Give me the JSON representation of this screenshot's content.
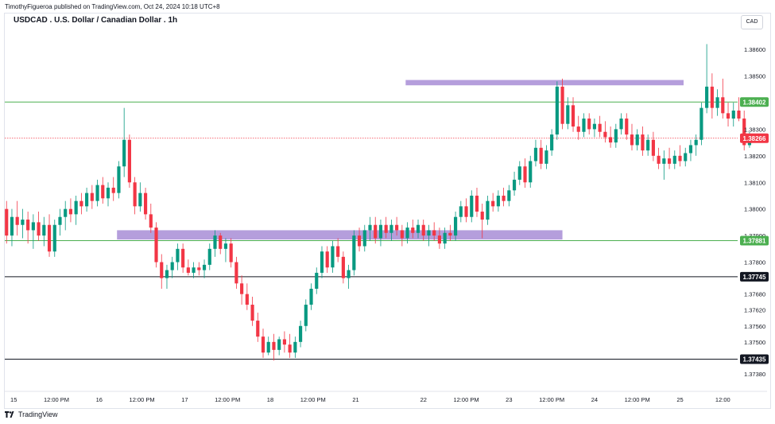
{
  "caption": "TimothyFigueroa published on TradingView.com, Oct 24, 2024 10:18 UTC+8",
  "brand": "TradingView",
  "chart_data": {
    "type": "candlestick",
    "title": "USDCAD . U.S. Dollar / Canadian Dollar . 1h",
    "currency": "CAD",
    "ylim": [
      1.3732,
      1.3872
    ],
    "y_ticks": [
      "1.38700",
      "1.38600",
      "1.38500",
      "1.38300",
      "1.38200",
      "1.38100",
      "1.38000",
      "1.37900",
      "1.37800",
      "1.37680",
      "1.37620",
      "1.37560",
      "1.37500",
      "1.37380"
    ],
    "x_ticks": [
      {
        "label": "15",
        "bar": 2
      },
      {
        "label": "12:00 PM",
        "bar": 14
      },
      {
        "label": "16",
        "bar": 26
      },
      {
        "label": "12:00 PM",
        "bar": 38
      },
      {
        "label": "17",
        "bar": 50
      },
      {
        "label": "12:00 PM",
        "bar": 62
      },
      {
        "label": "18",
        "bar": 74
      },
      {
        "label": "12:00 PM",
        "bar": 86
      },
      {
        "label": "21",
        "bar": 98
      },
      {
        "label": "22",
        "bar": 117
      },
      {
        "label": "12:00 PM",
        "bar": 129
      },
      {
        "label": "23",
        "bar": 141
      },
      {
        "label": "12:00 PM",
        "bar": 153
      },
      {
        "label": "24",
        "bar": 165
      },
      {
        "label": "12:00 PM",
        "bar": 177
      },
      {
        "label": "25",
        "bar": 189
      },
      {
        "label": "12:00",
        "bar": 201
      }
    ],
    "levels": [
      {
        "value": 1.38402,
        "label": "1.38402",
        "color": "#4caf50",
        "style": "solid"
      },
      {
        "value": 1.37881,
        "label": "1.37881",
        "color": "#4caf50",
        "style": "solid"
      },
      {
        "value": 1.37745,
        "label": "1.37745",
        "color": "#131722",
        "style": "solid"
      },
      {
        "value": 1.37435,
        "label": "1.37435",
        "color": "#131722",
        "style": "solid"
      },
      {
        "value": 1.38266,
        "label": "1.38266",
        "color": "#f23645",
        "style": "dotted"
      }
    ],
    "zones": [
      {
        "bar_start": 112,
        "bar_end": 190,
        "y_top": 1.38485,
        "y_bottom": 1.38465,
        "color": "#9575cd"
      },
      {
        "bar_start": 31,
        "bar_end": 156,
        "y_top": 1.3792,
        "y_bottom": 1.37885,
        "color": "#9575cd"
      }
    ],
    "colors": {
      "up": "#089981",
      "down": "#f23645"
    },
    "bars": 205,
    "candles": [
      [
        1.38,
        1.3803,
        1.3787,
        1.379
      ],
      [
        1.379,
        1.38,
        1.3786,
        1.3797
      ],
      [
        1.3797,
        1.3803,
        1.379,
        1.3794
      ],
      [
        1.3794,
        1.38,
        1.3789,
        1.3796
      ],
      [
        1.3796,
        1.3799,
        1.3787,
        1.3792
      ],
      [
        1.3792,
        1.3798,
        1.3785,
        1.3795
      ],
      [
        1.3795,
        1.3799,
        1.3788,
        1.379
      ],
      [
        1.379,
        1.3797,
        1.3786,
        1.3794
      ],
      [
        1.3794,
        1.3798,
        1.3782,
        1.3784
      ],
      [
        1.3784,
        1.3796,
        1.3782,
        1.3794
      ],
      [
        1.3794,
        1.38,
        1.379,
        1.3797
      ],
      [
        1.3797,
        1.3803,
        1.3792,
        1.38
      ],
      [
        1.38,
        1.3804,
        1.3795,
        1.3798
      ],
      [
        1.3798,
        1.3805,
        1.3794,
        1.3803
      ],
      [
        1.3803,
        1.3806,
        1.3798,
        1.3801
      ],
      [
        1.3801,
        1.3808,
        1.3799,
        1.3806
      ],
      [
        1.3806,
        1.3809,
        1.38,
        1.3803
      ],
      [
        1.3803,
        1.3811,
        1.3801,
        1.3809
      ],
      [
        1.3809,
        1.3812,
        1.3802,
        1.3804
      ],
      [
        1.3804,
        1.381,
        1.3801,
        1.3808
      ],
      [
        1.3808,
        1.3812,
        1.3803,
        1.3806
      ],
      [
        1.3806,
        1.3818,
        1.3804,
        1.3816
      ],
      [
        1.3816,
        1.3838,
        1.3812,
        1.3826
      ],
      [
        1.3826,
        1.3828,
        1.3808,
        1.381
      ],
      [
        1.381,
        1.3812,
        1.3798,
        1.3801
      ],
      [
        1.3801,
        1.381,
        1.3799,
        1.3806
      ],
      [
        1.3806,
        1.3808,
        1.3796,
        1.3798
      ],
      [
        1.3798,
        1.3802,
        1.3791,
        1.3793
      ],
      [
        1.3793,
        1.3795,
        1.3778,
        1.378
      ],
      [
        1.378,
        1.3783,
        1.377,
        1.3774
      ],
      [
        1.3774,
        1.3779,
        1.377,
        1.3777
      ],
      [
        1.3777,
        1.3782,
        1.3774,
        1.378
      ],
      [
        1.378,
        1.3787,
        1.3777,
        1.3785
      ],
      [
        1.3785,
        1.3787,
        1.3776,
        1.3778
      ],
      [
        1.3778,
        1.3781,
        1.3775,
        1.3776
      ],
      [
        1.3776,
        1.378,
        1.3774,
        1.3778
      ],
      [
        1.3778,
        1.378,
        1.3775,
        1.3777
      ],
      [
        1.3777,
        1.3781,
        1.3774,
        1.3779
      ],
      [
        1.3779,
        1.3787,
        1.3777,
        1.3785
      ],
      [
        1.3785,
        1.3792,
        1.3782,
        1.379
      ],
      [
        1.379,
        1.3791,
        1.3783,
        1.3785
      ],
      [
        1.3785,
        1.3789,
        1.378,
        1.3787
      ],
      [
        1.3787,
        1.3789,
        1.3778,
        1.378
      ],
      [
        1.378,
        1.3782,
        1.377,
        1.3772
      ],
      [
        1.3772,
        1.3775,
        1.3764,
        1.3768
      ],
      [
        1.3768,
        1.3772,
        1.3762,
        1.3764
      ],
      [
        1.3764,
        1.3767,
        1.3756,
        1.3758
      ],
      [
        1.3758,
        1.3761,
        1.375,
        1.3752
      ],
      [
        1.3752,
        1.3755,
        1.3744,
        1.3746
      ],
      [
        1.3746,
        1.3752,
        1.3745,
        1.375
      ],
      [
        1.375,
        1.3753,
        1.3743,
        1.3747
      ],
      [
        1.3747,
        1.3752,
        1.3745,
        1.3751
      ],
      [
        1.3751,
        1.3754,
        1.3746,
        1.3749
      ],
      [
        1.3749,
        1.3753,
        1.3744,
        1.3746
      ],
      [
        1.3746,
        1.3752,
        1.3744,
        1.375
      ],
      [
        1.375,
        1.3758,
        1.3748,
        1.3756
      ],
      [
        1.3756,
        1.3766,
        1.3754,
        1.3764
      ],
      [
        1.3764,
        1.3772,
        1.3762,
        1.377
      ],
      [
        1.377,
        1.3778,
        1.3768,
        1.3776
      ],
      [
        1.3776,
        1.3786,
        1.3774,
        1.3784
      ],
      [
        1.3784,
        1.3786,
        1.3776,
        1.3778
      ],
      [
        1.3778,
        1.3788,
        1.3776,
        1.3786
      ],
      [
        1.3786,
        1.3789,
        1.378,
        1.3782
      ],
      [
        1.3782,
        1.3784,
        1.3772,
        1.3774
      ],
      [
        1.3774,
        1.3779,
        1.377,
        1.3777
      ],
      [
        1.3777,
        1.3792,
        1.3775,
        1.379
      ],
      [
        1.379,
        1.3793,
        1.3784,
        1.3786
      ],
      [
        1.3786,
        1.3794,
        1.3784,
        1.3792
      ],
      [
        1.3792,
        1.3797,
        1.3788,
        1.3794
      ],
      [
        1.3794,
        1.3797,
        1.3787,
        1.3789
      ],
      [
        1.3789,
        1.3796,
        1.3786,
        1.3794
      ],
      [
        1.3794,
        1.3797,
        1.3789,
        1.3791
      ],
      [
        1.3791,
        1.3796,
        1.3788,
        1.3794
      ],
      [
        1.3794,
        1.3797,
        1.379,
        1.3792
      ],
      [
        1.3792,
        1.3794,
        1.3786,
        1.3789
      ],
      [
        1.3789,
        1.3795,
        1.3787,
        1.3793
      ],
      [
        1.3793,
        1.3796,
        1.3789,
        1.3791
      ],
      [
        1.3791,
        1.3796,
        1.3789,
        1.3794
      ],
      [
        1.3794,
        1.3796,
        1.3788,
        1.379
      ],
      [
        1.379,
        1.3794,
        1.3786,
        1.3792
      ],
      [
        1.3792,
        1.3795,
        1.3788,
        1.379
      ],
      [
        1.379,
        1.3793,
        1.3785,
        1.3787
      ],
      [
        1.3787,
        1.3793,
        1.3785,
        1.3791
      ],
      [
        1.3791,
        1.3794,
        1.3788,
        1.379
      ],
      [
        1.379,
        1.3799,
        1.3788,
        1.3797
      ],
      [
        1.3797,
        1.3803,
        1.3795,
        1.3801
      ],
      [
        1.3801,
        1.3804,
        1.3795,
        1.3797
      ],
      [
        1.3797,
        1.3807,
        1.3795,
        1.3805
      ],
      [
        1.3805,
        1.3808,
        1.3797,
        1.3799
      ],
      [
        1.3799,
        1.3802,
        1.3789,
        1.3796
      ],
      [
        1.3796,
        1.3805,
        1.3794,
        1.3803
      ],
      [
        1.3803,
        1.3806,
        1.3799,
        1.3801
      ],
      [
        1.3801,
        1.3807,
        1.3799,
        1.3805
      ],
      [
        1.3805,
        1.3808,
        1.3801,
        1.3803
      ],
      [
        1.3803,
        1.3809,
        1.3801,
        1.3807
      ],
      [
        1.3807,
        1.3814,
        1.3805,
        1.3811
      ],
      [
        1.3811,
        1.3818,
        1.3809,
        1.3816
      ],
      [
        1.3816,
        1.3819,
        1.3808,
        1.381
      ],
      [
        1.381,
        1.382,
        1.3808,
        1.3818
      ],
      [
        1.3818,
        1.3826,
        1.3816,
        1.3823
      ],
      [
        1.3823,
        1.3826,
        1.3815,
        1.3817
      ],
      [
        1.3817,
        1.3824,
        1.3815,
        1.3822
      ],
      [
        1.3822,
        1.383,
        1.382,
        1.3828
      ],
      [
        1.3828,
        1.3848,
        1.3826,
        1.3846
      ],
      [
        1.3846,
        1.3849,
        1.383,
        1.3832
      ],
      [
        1.3832,
        1.3842,
        1.383,
        1.3839
      ],
      [
        1.3839,
        1.3842,
        1.3829,
        1.3831
      ],
      [
        1.3831,
        1.3835,
        1.3826,
        1.3829
      ],
      [
        1.3829,
        1.3836,
        1.3827,
        1.3834
      ],
      [
        1.3834,
        1.3836,
        1.3828,
        1.383
      ],
      [
        1.383,
        1.3834,
        1.3827,
        1.3832
      ],
      [
        1.3832,
        1.3835,
        1.3827,
        1.3829
      ],
      [
        1.3829,
        1.3833,
        1.3825,
        1.3827
      ],
      [
        1.3827,
        1.3831,
        1.3823,
        1.3825
      ],
      [
        1.3825,
        1.3832,
        1.3823,
        1.383
      ],
      [
        1.383,
        1.3836,
        1.3828,
        1.3834
      ],
      [
        1.3834,
        1.3836,
        1.3826,
        1.3828
      ],
      [
        1.3828,
        1.3832,
        1.3822,
        1.3824
      ],
      [
        1.3824,
        1.383,
        1.3822,
        1.3828
      ],
      [
        1.3828,
        1.3831,
        1.382,
        1.3822
      ],
      [
        1.3822,
        1.3828,
        1.382,
        1.3826
      ],
      [
        1.3826,
        1.3829,
        1.3818,
        1.382
      ],
      [
        1.382,
        1.3823,
        1.3815,
        1.3817
      ],
      [
        1.3817,
        1.3822,
        1.3811,
        1.3819
      ],
      [
        1.3819,
        1.3823,
        1.3815,
        1.3817
      ],
      [
        1.3817,
        1.3822,
        1.3815,
        1.382
      ],
      [
        1.382,
        1.3824,
        1.3816,
        1.3818
      ],
      [
        1.3818,
        1.3823,
        1.3816,
        1.3821
      ],
      [
        1.3821,
        1.3826,
        1.3818,
        1.3824
      ],
      [
        1.3824,
        1.3828,
        1.382,
        1.3826
      ],
      [
        1.3826,
        1.384,
        1.3824,
        1.3838
      ],
      [
        1.3838,
        1.3862,
        1.3836,
        1.3846
      ],
      [
        1.3846,
        1.3851,
        1.3834,
        1.3838
      ],
      [
        1.3838,
        1.3845,
        1.3835,
        1.3842
      ],
      [
        1.3842,
        1.3849,
        1.3834,
        1.3836
      ],
      [
        1.3836,
        1.384,
        1.3831,
        1.3834
      ],
      [
        1.3834,
        1.384,
        1.3831,
        1.3837
      ],
      [
        1.3837,
        1.3842,
        1.3833,
        1.3834
      ],
      [
        1.3834,
        1.3837,
        1.3822,
        1.3824
      ],
      [
        1.3824,
        1.3829,
        1.3823,
        1.3827
      ]
    ],
    "candle_start_bar": 0,
    "candle_spacing": 1.5,
    "last_price": "1.38266"
  }
}
